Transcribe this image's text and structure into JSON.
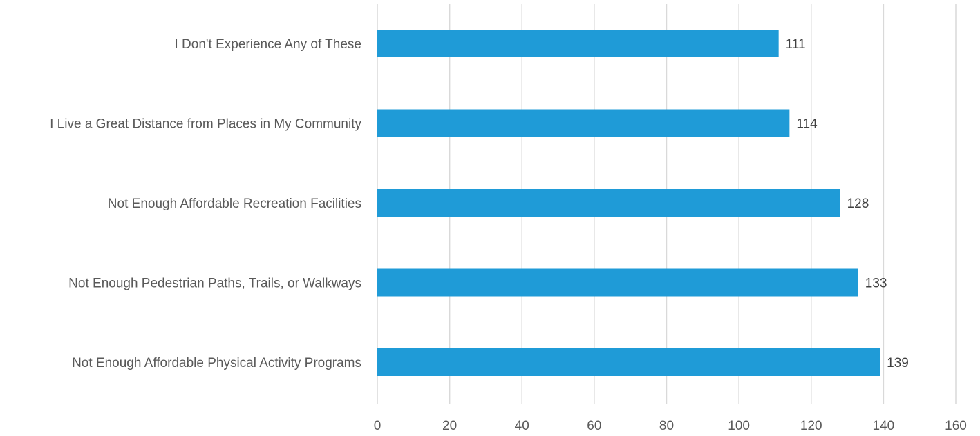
{
  "chart_data": {
    "type": "bar",
    "orientation": "horizontal",
    "categories": [
      "I Don't Experience Any of These",
      "I Live a Great Distance from Places in My Community",
      "Not Enough Affordable Recreation Facilities",
      "Not Enough Pedestrian Paths, Trails, or Walkways",
      "Not Enough Affordable Physical Activity Programs"
    ],
    "values": [
      111,
      114,
      128,
      133,
      139
    ],
    "xlim": [
      0,
      160
    ],
    "x_ticks": [
      0,
      20,
      40,
      60,
      80,
      100,
      120,
      140,
      160
    ],
    "data_labels": true,
    "grid": true,
    "legend": "none",
    "bar_color": "#1f9bd7"
  }
}
